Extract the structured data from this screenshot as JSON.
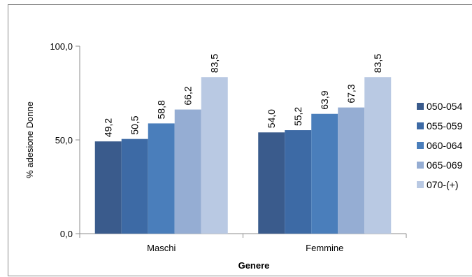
{
  "chart_data": {
    "type": "bar",
    "categories": [
      "Maschi",
      "Femmine"
    ],
    "series": [
      {
        "name": "050-054",
        "values": [
          49.2,
          54.0
        ],
        "labels": [
          "49,2",
          "54,0"
        ],
        "color": "#3a5b8c"
      },
      {
        "name": "055-059",
        "values": [
          50.5,
          55.2
        ],
        "labels": [
          "50,5",
          "55,2"
        ],
        "color": "#3d6aa5"
      },
      {
        "name": "060-064",
        "values": [
          58.8,
          63.9
        ],
        "labels": [
          "58,8",
          "63,9"
        ],
        "color": "#4a7ebb"
      },
      {
        "name": "065-069",
        "values": [
          66.2,
          67.3
        ],
        "labels": [
          "66,2",
          "67,3"
        ],
        "color": "#95add3"
      },
      {
        "name": "070-(+)",
        "values": [
          83.5,
          83.5
        ],
        "labels": [
          "83,5",
          "83,5"
        ],
        "color": "#b9c9e3"
      }
    ],
    "xlabel": "Genere",
    "ylabel": "% adesione Donne",
    "ylim": [
      0,
      100
    ],
    "yticks": [
      0,
      50,
      100
    ],
    "ytick_labels": [
      "0,0",
      "50,0",
      "100,0"
    ],
    "grid": false,
    "legend_position": "right"
  }
}
